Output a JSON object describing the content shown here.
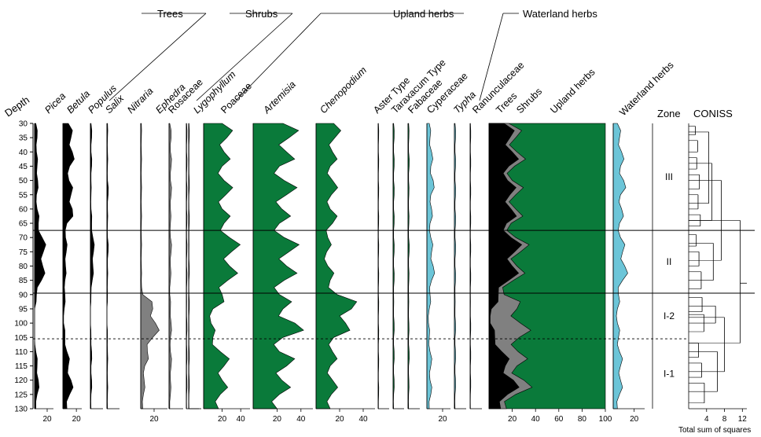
{
  "chart_data": {
    "type": "area",
    "y_axis": {
      "label": "Depth",
      "range": [
        30,
        130
      ],
      "ticks": [
        30,
        35,
        40,
        45,
        50,
        55,
        60,
        65,
        70,
        75,
        80,
        85,
        90,
        95,
        100,
        105,
        110,
        115,
        120,
        125,
        130
      ]
    },
    "groups": [
      "Trees",
      "Shrubs",
      "Upland herbs",
      "Waterland herbs"
    ],
    "zones_title": "Zone",
    "zones": [
      {
        "label": "III",
        "top": 30,
        "bottom": 67.5
      },
      {
        "label": "II",
        "top": 67.5,
        "bottom": 89.5
      },
      {
        "label": "I-2",
        "top": 89.5,
        "bottom": 105.5
      },
      {
        "label": "I-1",
        "top": 105.5,
        "bottom": 130
      }
    ],
    "zone_boundaries": [
      67.5,
      89.5
    ],
    "subzone_boundaries": [
      105.5
    ],
    "depths": [
      30,
      35,
      40,
      45,
      50,
      55,
      60,
      65,
      70,
      75,
      80,
      85,
      90,
      95,
      100,
      105,
      110,
      115,
      120,
      125,
      130
    ],
    "taxa": [
      {
        "name": "Picea",
        "italic": true,
        "group": "Trees",
        "color": "#000000",
        "max": 30,
        "tick": "20",
        "values": [
          2,
          4,
          3,
          4,
          5,
          3,
          4,
          6,
          12,
          14,
          13,
          11,
          3,
          0,
          0,
          0,
          2,
          4,
          6,
          4,
          2
        ]
      },
      {
        "name": "Betula",
        "italic": true,
        "group": "Trees",
        "color": "#000000",
        "max": 28,
        "tick": "20",
        "values": [
          8,
          12,
          14,
          10,
          9,
          12,
          14,
          6,
          4,
          5,
          4,
          3,
          3,
          2,
          1,
          3,
          6,
          8,
          12,
          10,
          6
        ]
      },
      {
        "name": "Populus",
        "italic": true,
        "group": "Trees",
        "color": "#000000",
        "max": 20,
        "values": [
          1,
          2,
          1,
          2,
          1,
          1,
          1,
          2,
          4,
          5,
          4,
          3,
          1,
          0,
          0,
          1,
          2,
          1,
          2,
          1,
          1
        ]
      },
      {
        "name": "Salix",
        "italic": true,
        "group": "Trees",
        "color": "#000000",
        "max": 20,
        "values": [
          1,
          1,
          1,
          1,
          1,
          2,
          1,
          1,
          1,
          2,
          1,
          1,
          1,
          0,
          0,
          1,
          1,
          1,
          1,
          1,
          1
        ]
      },
      {
        "name": "Nitraria",
        "italic": true,
        "group": "Shrubs",
        "color": "#808080",
        "max": 40,
        "tick": "20",
        "values": [
          1,
          1,
          1,
          1,
          1,
          1,
          1,
          1,
          1,
          1,
          1,
          1,
          3,
          18,
          22,
          18,
          10,
          6,
          5,
          4,
          3
        ]
      },
      {
        "name": "Ephedra",
        "italic": true,
        "group": "Shrubs",
        "color": "#808080",
        "max": 20,
        "values": [
          1,
          3,
          2,
          3,
          2,
          3,
          2,
          2,
          2,
          3,
          2,
          2,
          1,
          2,
          3,
          2,
          2,
          3,
          2,
          2,
          1
        ]
      },
      {
        "name": "Rosaceae",
        "italic": false,
        "group": "Shrubs",
        "color": "#808080",
        "max": 20,
        "values": [
          0.5,
          1,
          0.5,
          1,
          0.5,
          1,
          0.5,
          1,
          0.5,
          1,
          0.5,
          1,
          0.5,
          0.5,
          1,
          0.5,
          1,
          0.5,
          1,
          0.5,
          0.5
        ]
      },
      {
        "name": "Lygophyllum",
        "italic": true,
        "group": "Shrubs",
        "color": "#808080",
        "max": 20,
        "values": [
          0.5,
          1,
          0.5,
          0.5,
          1,
          0.5,
          0.5,
          1,
          0.5,
          0.5,
          1,
          0.5,
          0.5,
          1,
          0.5,
          0.5,
          1,
          0.5,
          1,
          0.5,
          0.5
        ]
      },
      {
        "name": "Poaceae",
        "italic": false,
        "group": "Upland herbs",
        "color": "#0a7a3a",
        "max": 50,
        "tick": "20 40",
        "values": [
          20,
          25,
          22,
          20,
          22,
          24,
          20,
          22,
          28,
          30,
          28,
          26,
          20,
          10,
          8,
          10,
          18,
          22,
          20,
          18,
          16
        ]
      },
      {
        "name": "Artemisia",
        "italic": true,
        "group": "Upland herbs",
        "color": "#0a7a3a",
        "max": 50,
        "tick": "20 40",
        "values": [
          25,
          30,
          28,
          22,
          26,
          28,
          24,
          22,
          26,
          30,
          28,
          26,
          22,
          25,
          35,
          25,
          22,
          28,
          24,
          22,
          20
        ]
      },
      {
        "name": "Chenopodium",
        "italic": true,
        "group": "Upland herbs",
        "color": "#0a7a3a",
        "max": 50,
        "tick": "20 40",
        "values": [
          15,
          16,
          14,
          12,
          14,
          13,
          12,
          14,
          10,
          9,
          10,
          12,
          18,
          30,
          25,
          15,
          14,
          12,
          14,
          13,
          12
        ]
      },
      {
        "name": "Aster Type",
        "italic": false,
        "group": "Upland herbs",
        "color": "#0a7a3a",
        "max": 20,
        "values": [
          0.5,
          1,
          0.5,
          1,
          0.5,
          1,
          0.5,
          1,
          0.5,
          1,
          0.5,
          1,
          0.5,
          1,
          0.5,
          1,
          0.5,
          1,
          0.5,
          1,
          0.5
        ]
      },
      {
        "name": "Taraxacum Type",
        "italic": false,
        "group": "Upland herbs",
        "color": "#0a7a3a",
        "max": 20,
        "values": [
          1,
          2,
          1,
          2,
          1,
          2,
          1,
          2,
          1,
          2,
          1,
          2,
          1,
          1,
          2,
          1,
          2,
          1,
          2,
          1,
          1
        ]
      },
      {
        "name": "Fabaceae",
        "italic": false,
        "group": "Upland herbs",
        "color": "#0a7a3a",
        "max": 20,
        "values": [
          1,
          1.5,
          1,
          2,
          1,
          1.5,
          1,
          1.5,
          1,
          2,
          1,
          1.5,
          1,
          1,
          1.5,
          1,
          2,
          1,
          1.5,
          1,
          1
        ]
      },
      {
        "name": "Cyperaceae",
        "italic": false,
        "group": "Waterland herbs",
        "color": "#6cc5d8",
        "max": 30,
        "tick": "20",
        "values": [
          3,
          4,
          6,
          5,
          8,
          5,
          6,
          4,
          5,
          6,
          8,
          6,
          4,
          3,
          2,
          3,
          4,
          5,
          4,
          5,
          3
        ]
      },
      {
        "name": "Typha",
        "italic": true,
        "group": "Waterland herbs",
        "color": "#6cc5d8",
        "max": 20,
        "values": [
          1,
          2,
          1,
          2,
          1,
          2,
          1,
          2,
          1,
          2,
          1,
          2,
          1,
          1,
          2,
          1,
          2,
          1,
          2,
          1,
          1
        ]
      },
      {
        "name": "Ranunculaceae",
        "italic": false,
        "group": "Waterland herbs",
        "color": "#6cc5d8",
        "max": 20,
        "values": [
          0.5,
          1,
          0.5,
          1,
          0.5,
          1,
          0.5,
          1,
          0.5,
          1,
          0.5,
          1,
          0.5,
          0.5,
          1,
          0.5,
          1,
          0.5,
          1,
          0.5,
          0.5
        ]
      }
    ],
    "cumulative": {
      "labels": [
        "Trees",
        "Shrubs",
        "Upland herbs"
      ],
      "ticks": [
        "20",
        "40",
        "60",
        "80",
        "100"
      ],
      "trees": [
        13,
        18,
        20,
        17,
        16,
        18,
        19,
        15,
        19,
        22,
        20,
        17,
        8,
        2,
        1,
        5,
        11,
        14,
        21,
        16,
        10
      ],
      "shrubs": [
        4,
        5,
        4,
        5,
        4,
        5,
        4,
        4,
        4,
        5,
        4,
        4,
        5,
        22,
        26,
        21,
        14,
        10,
        9,
        7,
        5
      ]
    },
    "waterland_total": {
      "label": "Waterland herbs",
      "tick": "20",
      "max": 30,
      "values": [
        4,
        6,
        8,
        7,
        10,
        7,
        8,
        6,
        7,
        9,
        11,
        9,
        5,
        4,
        4,
        5,
        6,
        7,
        7,
        6,
        4
      ]
    },
    "coniss": {
      "title": "CONISS",
      "ticks": [
        "4",
        "8",
        "12"
      ],
      "xlabel": "Total sum of squares"
    }
  }
}
